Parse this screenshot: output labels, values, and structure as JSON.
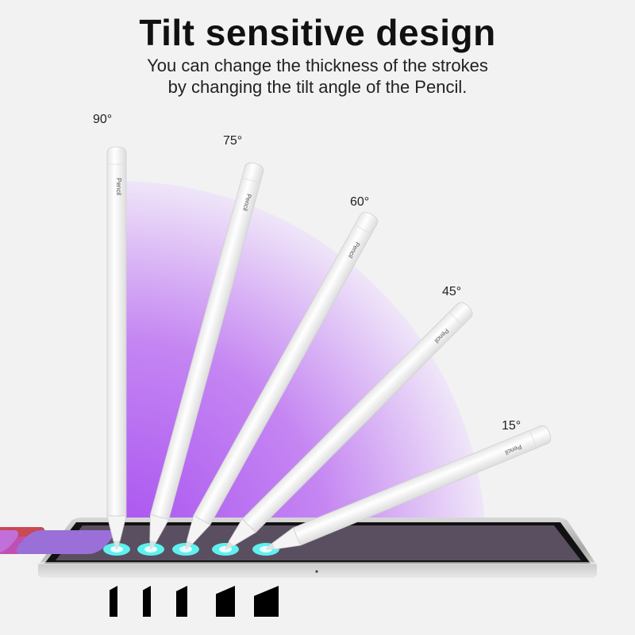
{
  "header": {
    "title": "Tilt sensitive design",
    "subtitle_line1": "You can change the thickness of the strokes",
    "subtitle_line2": "by changing the tilt angle of the Pencil."
  },
  "pencils": [
    {
      "angle_label": "90°",
      "brand": "Pencil"
    },
    {
      "angle_label": "75°",
      "brand": "Pencil"
    },
    {
      "angle_label": "60°",
      "brand": "Pencil"
    },
    {
      "angle_label": "45°",
      "brand": "Pencil"
    },
    {
      "angle_label": "15°",
      "brand": "Pencil"
    }
  ],
  "colors": {
    "arc": "#b46cf0",
    "contact_glow": "#5ff0f0",
    "stroke": "#000000"
  }
}
